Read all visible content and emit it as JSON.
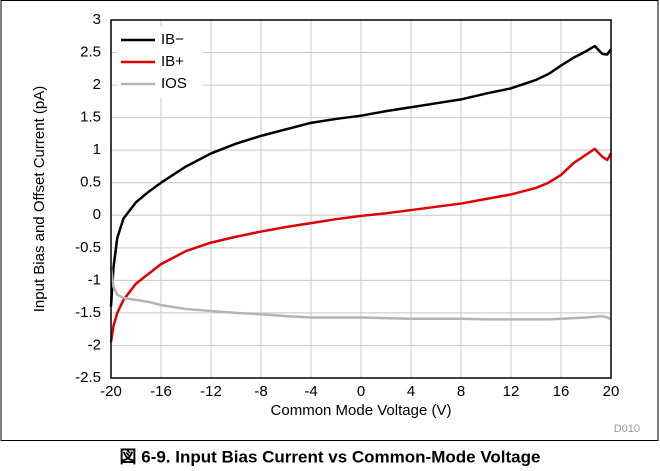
{
  "chart_data": {
    "type": "line",
    "xlabel": "Common Mode Voltage (V)",
    "ylabel": "Input Bias and Offset Current (pA)",
    "code": "D010",
    "caption": "図 6-9. Input Bias Current vs Common-Mode Voltage",
    "x": [
      -20,
      -19.8,
      -19.5,
      -19,
      -18,
      -17,
      -16,
      -14,
      -12,
      -10,
      -8,
      -6,
      -4,
      -2,
      0,
      2,
      4,
      6,
      8,
      10,
      12,
      14,
      15,
      16,
      17,
      18,
      18.7,
      19.3,
      19.7,
      20
    ],
    "series": [
      {
        "name": "IB−",
        "color": "#000000",
        "values": [
          -1.4,
          -0.8,
          -0.35,
          -0.05,
          0.2,
          0.36,
          0.5,
          0.75,
          0.95,
          1.1,
          1.22,
          1.32,
          1.42,
          1.48,
          1.53,
          1.6,
          1.66,
          1.72,
          1.78,
          1.87,
          1.95,
          2.08,
          2.17,
          2.3,
          2.42,
          2.52,
          2.6,
          2.48,
          2.47,
          2.55
        ]
      },
      {
        "name": "IB+",
        "color": "#e00000",
        "values": [
          -1.95,
          -1.7,
          -1.5,
          -1.3,
          -1.05,
          -0.9,
          -0.75,
          -0.55,
          -0.42,
          -0.33,
          -0.25,
          -0.18,
          -0.12,
          -0.06,
          -0.01,
          0.03,
          0.08,
          0.13,
          0.18,
          0.25,
          0.32,
          0.42,
          0.5,
          0.62,
          0.8,
          0.93,
          1.02,
          0.9,
          0.85,
          0.95
        ]
      },
      {
        "name": "IOS",
        "color": "#b4b4b4",
        "values": [
          -0.8,
          -1.1,
          -1.22,
          -1.27,
          -1.3,
          -1.33,
          -1.38,
          -1.44,
          -1.47,
          -1.5,
          -1.52,
          -1.55,
          -1.57,
          -1.57,
          -1.57,
          -1.58,
          -1.59,
          -1.59,
          -1.59,
          -1.6,
          -1.6,
          -1.6,
          -1.6,
          -1.59,
          -1.58,
          -1.57,
          -1.56,
          -1.55,
          -1.57,
          -1.6
        ]
      }
    ],
    "xlim": [
      -20,
      20
    ],
    "xticks": [
      -20,
      -16,
      -12,
      -8,
      -4,
      0,
      4,
      8,
      12,
      16,
      20
    ],
    "ylim": [
      -2.5,
      3
    ],
    "yticks": [
      -2.5,
      -2,
      -1.5,
      -1,
      -0.5,
      0,
      0.5,
      1,
      1.5,
      2,
      2.5,
      3
    ],
    "grid": true,
    "legend": "upper left"
  }
}
